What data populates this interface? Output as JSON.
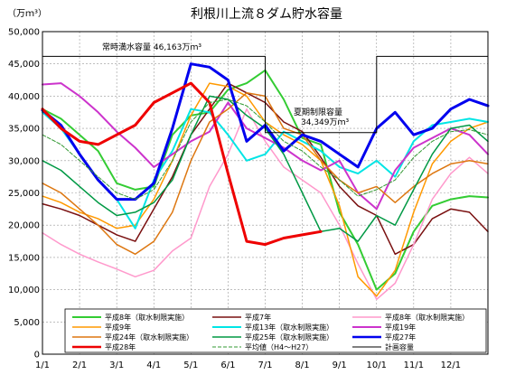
{
  "chart_data": {
    "type": "line",
    "title": "利根川上流８ダム貯水容量",
    "ylabel": "（万ｍ³）",
    "ylim": [
      0,
      50000
    ],
    "y_ticks": [
      "0",
      "5,000",
      "10,000",
      "15,000",
      "20,000",
      "25,000",
      "30,000",
      "35,000",
      "40,000",
      "45,000",
      "50,000"
    ],
    "x_tick_labels": [
      "1/1",
      "2/1",
      "3/1",
      "4/1",
      "5/1",
      "6/1",
      "7/1",
      "8/1",
      "9/1",
      "10/1",
      "11/1",
      "12/1"
    ],
    "annotations": {
      "full_label": "常時満水容量  46,163万ｍ³",
      "limit_label": "夏期制限容量",
      "limit_value": "34,349万ｍ³"
    },
    "series": [
      {
        "name": "平成8年（取水制限実施）",
        "color": "#33cc33",
        "width": 2,
        "x": [
          0,
          0.5,
          1.0,
          1.5,
          2.0,
          2.5,
          3.0,
          3.5,
          4.0,
          4.5,
          5.0,
          5.5,
          6.0,
          6.5,
          7.0,
          7.5,
          8.0,
          8.5,
          9.0,
          9.5,
          10.0,
          10.5,
          11.0,
          11.5,
          12.0
        ],
        "y": [
          38000,
          36500,
          34000,
          31500,
          26500,
          25500,
          26000,
          34000,
          37000,
          37500,
          41000,
          42000,
          44000,
          39500,
          33500,
          32500,
          22000,
          17000,
          10000,
          12500,
          19000,
          23000,
          24000,
          24500,
          24300
        ]
      },
      {
        "name": "平成7年",
        "color": "#7a1010",
        "width": 1.5,
        "x": [
          0,
          0.5,
          1.0,
          1.5,
          2.0,
          2.5,
          3.0,
          3.5,
          4.0,
          4.5,
          5.0,
          5.5,
          6.0,
          6.5,
          7.0,
          7.5,
          8.0,
          8.5,
          9.0,
          9.5,
          10.0,
          10.5,
          11.0,
          11.5,
          12.0
        ],
        "y": [
          23300,
          22500,
          21500,
          20000,
          18500,
          17500,
          22500,
          27500,
          34000,
          38000,
          42000,
          40500,
          39000,
          36000,
          34500,
          30500,
          26000,
          23000,
          21500,
          15500,
          17000,
          21000,
          22500,
          22000,
          19000
        ]
      },
      {
        "name": "平成8年（取水制限実施）",
        "color": "#ff99cc",
        "width": 1.5,
        "x": [
          0,
          0.5,
          1.0,
          1.5,
          2.0,
          2.5,
          3.0,
          3.5,
          4.0,
          4.5,
          5.0,
          5.5,
          6.0,
          6.5,
          7.0,
          7.5,
          8.0,
          8.5,
          9.0,
          9.5,
          10.0,
          10.5,
          11.0,
          11.5,
          12.0
        ],
        "y": [
          18800,
          17000,
          15500,
          14300,
          13200,
          12000,
          13000,
          16000,
          18000,
          26000,
          31000,
          38000,
          33000,
          29000,
          27000,
          25000,
          20000,
          14000,
          8500,
          11000,
          17000,
          24000,
          28000,
          30500,
          28000
        ]
      },
      {
        "name": "平成9年",
        "color": "#ff9900",
        "width": 1.5,
        "x": [
          0,
          0.5,
          1.0,
          1.5,
          2.0,
          2.5,
          3.0,
          3.5,
          4.0,
          4.5,
          5.0,
          5.5,
          6.0,
          6.5,
          7.0,
          7.5,
          8.0,
          8.5,
          9.0,
          9.5,
          10.0,
          10.5,
          11.0,
          11.5,
          12.0
        ],
        "y": [
          24500,
          23500,
          22000,
          21000,
          19500,
          20000,
          24000,
          30000,
          37000,
          42000,
          41500,
          40000,
          36000,
          34000,
          32500,
          30000,
          23000,
          12000,
          9000,
          13000,
          22000,
          29500,
          33000,
          35000,
          36000
        ]
      },
      {
        "name": "平成13年（取水制限実施）",
        "color": "#00e5e5",
        "width": 2,
        "x": [
          0,
          0.5,
          1.0,
          1.5,
          2.0,
          2.5,
          3.0,
          3.5,
          4.0,
          4.5,
          5.0,
          5.5,
          6.0,
          6.5,
          7.0,
          7.5,
          8.0,
          8.5,
          9.0,
          9.5,
          10.0,
          10.5,
          11.0,
          11.5,
          12.0
        ],
        "y": [
          37500,
          35000,
          31000,
          27000,
          24000,
          19500,
          27000,
          31500,
          38000,
          37500,
          34000,
          30000,
          31000,
          34500,
          33000,
          31500,
          29000,
          28000,
          30000,
          27500,
          33000,
          35500,
          36000,
          36500,
          36000
        ]
      },
      {
        "name": "平成19年",
        "color": "#cc33cc",
        "width": 2,
        "x": [
          0,
          0.5,
          1.0,
          1.5,
          2.0,
          2.5,
          3.0,
          3.5,
          4.0,
          4.5,
          5.0,
          5.5,
          6.0,
          6.5,
          7.0,
          7.5,
          8.0,
          8.5,
          9.0,
          9.5,
          10.0,
          10.5,
          11.0,
          11.5,
          12.0
        ],
        "y": [
          41800,
          42000,
          40000,
          37500,
          34500,
          32000,
          29000,
          31000,
          33000,
          34500,
          39000,
          35000,
          33500,
          32000,
          30000,
          28500,
          30000,
          25000,
          22500,
          28500,
          32000,
          33500,
          35000,
          34000,
          31000
        ]
      },
      {
        "name": "平成24年（取水制限実施）",
        "color": "#dd7711",
        "width": 1.5,
        "x": [
          0,
          0.5,
          1.0,
          1.5,
          2.0,
          2.5,
          3.0,
          3.5,
          4.0,
          4.5,
          5.0,
          5.5,
          6.0,
          6.5,
          7.0,
          7.5,
          8.0,
          8.5,
          9.0,
          9.5,
          10.0,
          10.5,
          11.0,
          11.5,
          12.0
        ],
        "y": [
          26500,
          25000,
          22500,
          20000,
          17000,
          15500,
          17500,
          22000,
          30000,
          36000,
          38000,
          40500,
          40000,
          35000,
          34000,
          30000,
          27000,
          25000,
          26000,
          23500,
          26000,
          28000,
          29500,
          30000,
          29500
        ]
      },
      {
        "name": "平成25年（取水制限実施）",
        "color": "#009944",
        "width": 1.5,
        "x": [
          0,
          0.5,
          1.0,
          1.5,
          2.0,
          2.5,
          3.0,
          3.5,
          4.0,
          4.5,
          5.0,
          5.5,
          6.0,
          6.5,
          7.0,
          7.5,
          8.0,
          8.5,
          9.0,
          9.5,
          10.0,
          10.5,
          11.0,
          11.5,
          12.0
        ],
        "y": [
          30000,
          28500,
          26000,
          23500,
          21500,
          22000,
          23500,
          27000,
          34000,
          40000,
          39500,
          37000,
          35000,
          31000,
          25000,
          19000,
          19500,
          17500,
          21500,
          20000,
          25500,
          31000,
          35000,
          35500,
          33000
        ]
      },
      {
        "name": "平成27年",
        "color": "#0000ee",
        "width": 3,
        "x": [
          0,
          0.5,
          1.0,
          1.5,
          2.0,
          2.5,
          3.0,
          3.5,
          4.0,
          4.5,
          5.0,
          5.5,
          6.0,
          6.5,
          7.0,
          7.5,
          8.0,
          8.5,
          9.0,
          9.5,
          10.0,
          10.5,
          11.0,
          11.5,
          12.0
        ],
        "y": [
          37800,
          35500,
          31000,
          27000,
          24000,
          24000,
          26500,
          35000,
          45000,
          44500,
          42500,
          33000,
          35500,
          31500,
          34000,
          33000,
          31000,
          29000,
          35000,
          37500,
          34000,
          35000,
          38000,
          39500,
          38500
        ]
      },
      {
        "name": "平成28年",
        "color": "#ee0000",
        "width": 3,
        "x": [
          0,
          0.5,
          1.0,
          1.5,
          2.0,
          2.5,
          3.0,
          3.5,
          4.0,
          4.5,
          5.0,
          5.5,
          6.0,
          6.5,
          7.0,
          7.5
        ],
        "y": [
          38000,
          35000,
          33000,
          32500,
          34000,
          35500,
          39000,
          40500,
          42000,
          39000,
          28000,
          17500,
          17000,
          18000,
          18500,
          19000
        ]
      },
      {
        "name": "平均値（H4～H27）",
        "color": "#339933",
        "width": 1,
        "dash": "4,2",
        "x": [
          0,
          0.5,
          1.0,
          1.5,
          2.0,
          2.5,
          3.0,
          3.5,
          4.0,
          4.5,
          5.0,
          5.5,
          6.0,
          6.5,
          7.0,
          7.5,
          8.0,
          8.5,
          9.0,
          9.5,
          10.0,
          10.5,
          11.0,
          11.5,
          12.0
        ],
        "y": [
          34000,
          32500,
          30000,
          27500,
          25000,
          24000,
          25500,
          30000,
          36000,
          39000,
          39500,
          38500,
          36000,
          33000,
          31500,
          29000,
          27000,
          24500,
          25500,
          27000,
          30500,
          33000,
          34500,
          34800,
          34000
        ]
      },
      {
        "name": "計画容量",
        "color": "#000000",
        "width": 1,
        "x": [
          0,
          6.0,
          6.0,
          9.0,
          9.0,
          12.0
        ],
        "y": [
          46163,
          46163,
          34349,
          34349,
          46163,
          46163
        ]
      }
    ]
  }
}
